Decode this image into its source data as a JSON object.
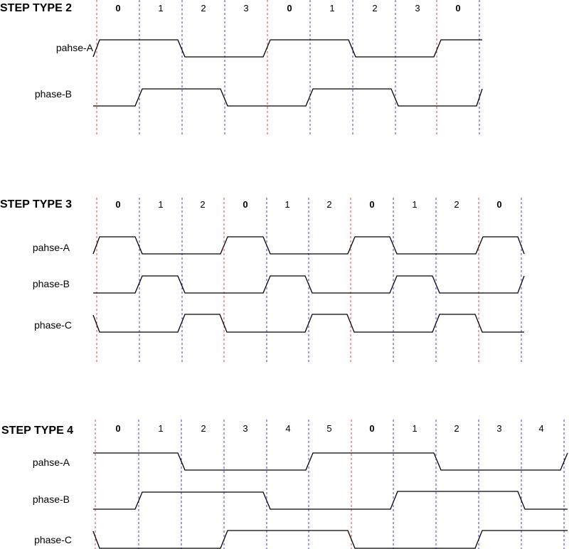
{
  "colors": {
    "zero_line": "#e2404a",
    "step_line": "#3d3dd6",
    "wave": "#000000"
  },
  "diagrams": [
    {
      "id": "type2",
      "title": "STEP TYPE 2",
      "steps": [
        "0",
        "1",
        "2",
        "3",
        "0",
        "1",
        "2",
        "3",
        "0"
      ],
      "signals": [
        {
          "name": "pahse-A",
          "levels": [
            1,
            1,
            0,
            0,
            1,
            1,
            0,
            0,
            1
          ]
        },
        {
          "name": "phase-B",
          "levels": [
            0,
            1,
            1,
            0,
            0,
            1,
            1,
            0,
            0
          ]
        }
      ]
    },
    {
      "id": "type3",
      "title": "STEP TYPE 3",
      "steps": [
        "0",
        "1",
        "2",
        "0",
        "1",
        "2",
        "0",
        "1",
        "2",
        "0"
      ],
      "signals": [
        {
          "name": "pahse-A",
          "levels": [
            1,
            0,
            0,
            1,
            0,
            0,
            1,
            0,
            0,
            1
          ]
        },
        {
          "name": "phase-B",
          "levels": [
            0,
            1,
            0,
            0,
            1,
            0,
            0,
            1,
            0,
            0
          ]
        },
        {
          "name": "phase-C",
          "levels": [
            0,
            0,
            1,
            0,
            0,
            1,
            0,
            0,
            1,
            0
          ]
        }
      ]
    },
    {
      "id": "type4",
      "title": "STEP TYPE 4",
      "steps": [
        "0",
        "1",
        "2",
        "3",
        "4",
        "5",
        "0",
        "1",
        "2",
        "3",
        "4"
      ],
      "signals": [
        {
          "name": "pahse-A",
          "levels": [
            1,
            1,
            0,
            0,
            0,
            1,
            1,
            1,
            0,
            0,
            0
          ]
        },
        {
          "name": "phase-B",
          "levels": [
            0,
            1,
            1,
            1,
            0,
            0,
            0,
            1,
            1,
            1,
            0
          ]
        },
        {
          "name": "phase-C",
          "levels": [
            0,
            0,
            0,
            1,
            1,
            1,
            0,
            0,
            0,
            1,
            1
          ]
        }
      ]
    }
  ]
}
